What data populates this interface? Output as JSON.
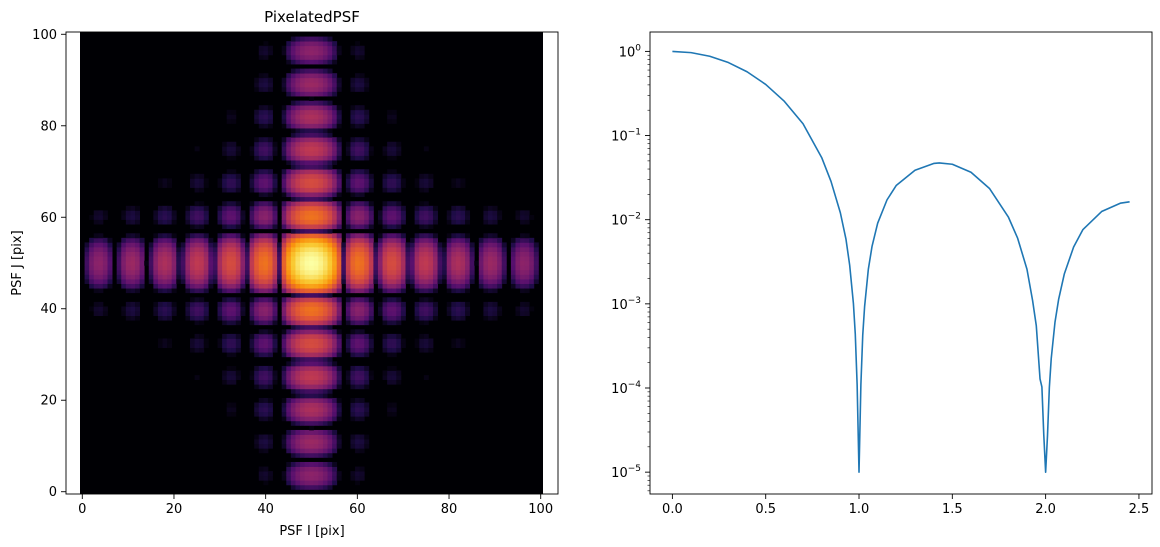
{
  "chart_data": [
    {
      "type": "heatmap",
      "title": "PixelatedPSF",
      "xlabel": "PSF I [pix]",
      "ylabel": "PSF J [pix]",
      "xlim": [
        -0.5,
        100.5
      ],
      "ylim": [
        -0.5,
        100.5
      ],
      "xticks": [
        0,
        20,
        40,
        60,
        80,
        100
      ],
      "yticks": [
        0,
        20,
        40,
        60,
        80,
        100
      ],
      "image_size": [
        101,
        101
      ],
      "center": [
        50,
        50
      ],
      "colormap": "inferno",
      "grid": false
    },
    {
      "type": "line",
      "title": "",
      "xlabel": "",
      "ylabel": "",
      "xlim": [
        -0.12,
        2.57
      ],
      "ylim": [
        5.5e-06,
        1.7
      ],
      "yscale": "log",
      "xticks": [
        0.0,
        0.5,
        1.0,
        1.5,
        2.0,
        2.5
      ],
      "xtick_labels": [
        "0.0",
        "0.5",
        "1.0",
        "1.5",
        "2.0",
        "2.5"
      ],
      "yticks": [
        1e-05,
        0.0001,
        0.001,
        0.01,
        0.1,
        1
      ],
      "ytick_labels": [
        {
          "base": "10",
          "exp": "−5"
        },
        {
          "base": "10",
          "exp": "−4"
        },
        {
          "base": "10",
          "exp": "−3"
        },
        {
          "base": "10",
          "exp": "−2"
        },
        {
          "base": "10",
          "exp": "−1"
        },
        {
          "base": "10",
          "exp": "0"
        }
      ],
      "series": [
        {
          "color": "#1f77b4",
          "x": [
            0.0,
            0.1,
            0.2,
            0.3,
            0.4,
            0.5,
            0.6,
            0.7,
            0.8,
            0.85,
            0.9,
            0.93,
            0.95,
            0.97,
            0.98,
            0.99,
            1.0,
            1.01,
            1.02,
            1.03,
            1.05,
            1.07,
            1.1,
            1.15,
            1.2,
            1.3,
            1.4,
            1.43,
            1.5,
            1.6,
            1.7,
            1.8,
            1.85,
            1.9,
            1.93,
            1.95,
            1.97,
            1.98,
            1.99,
            2.0,
            2.01,
            2.02,
            2.03,
            2.05,
            2.07,
            2.1,
            2.15,
            2.2,
            2.3,
            2.4,
            2.45
          ],
          "y": [
            1.0,
            0.967,
            0.875,
            0.737,
            0.573,
            0.405,
            0.255,
            0.138,
            0.0547,
            0.0285,
            0.0121,
            0.00589,
            0.00288,
            0.00101,
            0.000437,
            0.000109,
            1e-05,
            0.000109,
            0.000424,
            0.00093,
            0.00258,
            0.00485,
            0.0091,
            0.0172,
            0.0256,
            0.0387,
            0.0466,
            0.0472,
            0.0456,
            0.0366,
            0.0234,
            0.0108,
            0.00602,
            0.00258,
            0.0011,
            0.000549,
            0.000128,
            0.000103,
            2.8e-05,
            1e-05,
            2.7e-05,
            0.000102,
            0.000224,
            0.000602,
            0.00114,
            0.00226,
            0.00474,
            0.00764,
            0.0125,
            0.0157,
            0.0163
          ]
        }
      ]
    }
  ]
}
